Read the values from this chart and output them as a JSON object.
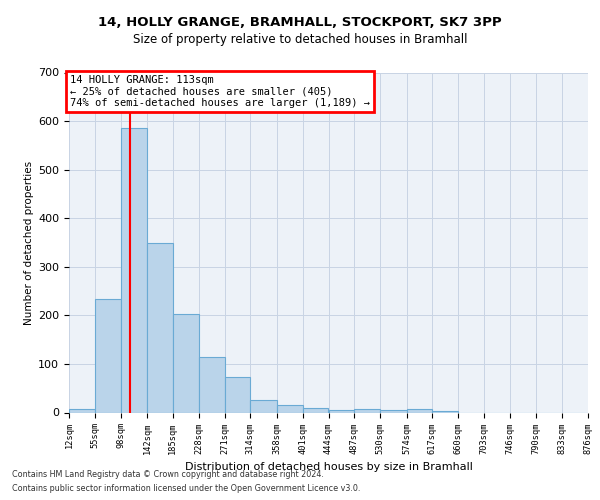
{
  "title_line1": "14, HOLLY GRANGE, BRAMHALL, STOCKPORT, SK7 3PP",
  "title_line2": "Size of property relative to detached houses in Bramhall",
  "xlabel": "Distribution of detached houses by size in Bramhall",
  "ylabel": "Number of detached properties",
  "bin_edges": [
    12,
    55,
    98,
    142,
    185,
    228,
    271,
    314,
    358,
    401,
    444,
    487,
    530,
    574,
    617,
    660,
    703,
    746,
    790,
    833,
    876
  ],
  "bar_heights": [
    8,
    234,
    585,
    350,
    202,
    114,
    73,
    25,
    15,
    10,
    6,
    8,
    5,
    8,
    4,
    0,
    0,
    0,
    0,
    0
  ],
  "tick_labels": [
    "12sqm",
    "55sqm",
    "98sqm",
    "142sqm",
    "185sqm",
    "228sqm",
    "271sqm",
    "314sqm",
    "358sqm",
    "401sqm",
    "444sqm",
    "487sqm",
    "530sqm",
    "574sqm",
    "617sqm",
    "660sqm",
    "703sqm",
    "746sqm",
    "790sqm",
    "833sqm",
    "876sqm"
  ],
  "bar_color": "#bad4ea",
  "bar_edge_color": "#6aaad4",
  "property_line_x": 113,
  "annotation_text": "14 HOLLY GRANGE: 113sqm\n← 25% of detached houses are smaller (405)\n74% of semi-detached houses are larger (1,189) →",
  "annotation_box_color": "#cc0000",
  "ylim": [
    0,
    700
  ],
  "yticks": [
    0,
    100,
    200,
    300,
    400,
    500,
    600,
    700
  ],
  "grid_color": "#c8d4e4",
  "background_color": "#edf2f8",
  "footer_line1": "Contains HM Land Registry data © Crown copyright and database right 2024.",
  "footer_line2": "Contains public sector information licensed under the Open Government Licence v3.0."
}
